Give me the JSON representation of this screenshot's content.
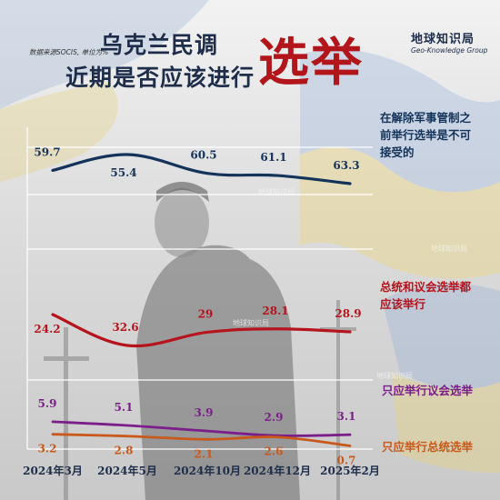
{
  "header": {
    "source": "数据来源SOCIS, 单位为%",
    "title_line1": "乌克兰民调",
    "title_line2": "近期是否应该进行",
    "title_big": "选举",
    "brand_cn": "地球知识局",
    "brand_en": "Geo-Knowledge Group"
  },
  "watermark": "地球知识局",
  "colors": {
    "navy": "#14335a",
    "red": "#b5141c",
    "purple": "#7b1e8a",
    "orange": "#c8591b",
    "grid": "#ffffff"
  },
  "chart_data": {
    "type": "line",
    "categories": [
      "2024年3月",
      "2024年5月",
      "2024年10月",
      "2024年12月",
      "2025年2月"
    ],
    "series": [
      {
        "name": "在解除军事管制之前举行选举是不可接受的",
        "label_lines": [
          "在解除军事管制之",
          "前举行选举是不可",
          "接受的"
        ],
        "color": "#14335a",
        "values": [
          59.7,
          55.4,
          60.5,
          61.1,
          63.3
        ]
      },
      {
        "name": "总统和议会选举都应该举行",
        "label_lines": [
          "总统和议会选举都",
          "应该举行"
        ],
        "color": "#b5141c",
        "values": [
          24.2,
          32.6,
          29,
          28.1,
          28.9
        ]
      },
      {
        "name": "只应举行议会选举",
        "label_lines": [
          "只应举行议会选举"
        ],
        "color": "#7b1e8a",
        "values": [
          5.9,
          5.1,
          3.9,
          2.9,
          3.1
        ]
      },
      {
        "name": "只应举行总统选举",
        "label_lines": [
          "只应举行总统选举"
        ],
        "color": "#c8591b",
        "values": [
          3.2,
          2.8,
          2.1,
          2.6,
          0.7
        ]
      }
    ],
    "grid": true,
    "legend": "right"
  }
}
